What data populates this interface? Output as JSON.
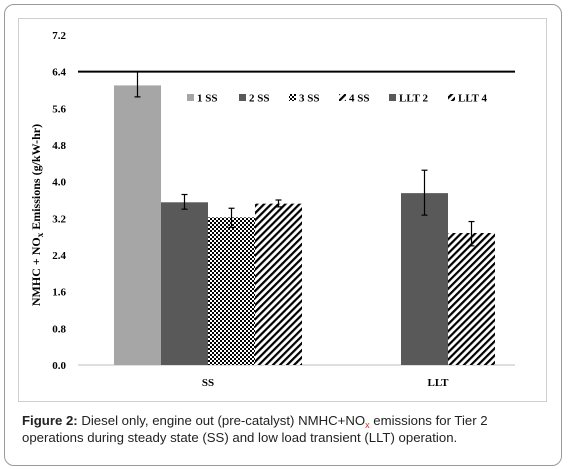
{
  "chart_data": {
    "type": "bar",
    "title": "",
    "xlabel": "",
    "ylabel": "NMHC + NO",
    "ylabel_sub": "x",
    "ylabel_rest": " Emissions (g/kW-hr)",
    "ylim": [
      0,
      7.2
    ],
    "yticks": [
      "0.0",
      "0.8",
      "1.6",
      "2.4",
      "3.2",
      "4.0",
      "4.8",
      "5.6",
      "6.4",
      "7.2"
    ],
    "categories": [
      "SS",
      "LLT"
    ],
    "reference_line": 6.4,
    "grid": false,
    "legend_position": "top-right",
    "series": [
      {
        "name": "1 SS",
        "group": "SS",
        "value": 6.1,
        "err_low": 5.85,
        "err_high": 6.4,
        "color": "#a6a6a6",
        "pattern": "solid"
      },
      {
        "name": "2 SS",
        "group": "SS",
        "value": 3.55,
        "err_low": 3.4,
        "err_high": 3.72,
        "color": "#595959",
        "pattern": "solid"
      },
      {
        "name": "3 SS",
        "group": "SS",
        "value": 3.22,
        "err_low": 3.0,
        "err_high": 3.42,
        "color": "#000000",
        "pattern": "checker"
      },
      {
        "name": "4 SS",
        "group": "SS",
        "value": 3.52,
        "err_low": 3.45,
        "err_high": 3.6,
        "color": "#000000",
        "pattern": "diagonal"
      },
      {
        "name": "LLT 2",
        "group": "LLT",
        "value": 3.75,
        "err_low": 3.27,
        "err_high": 4.25,
        "color": "#595959",
        "pattern": "solid"
      },
      {
        "name": "LLT 4",
        "group": "LLT",
        "value": 2.88,
        "err_low": 2.6,
        "err_high": 3.13,
        "color": "#000000",
        "pattern": "diagonal"
      }
    ]
  },
  "caption": {
    "label": "Figure 2:",
    "text_part1": " Diesel only, engine out (pre-catalyst) NMHC+NO",
    "sub": "x",
    "text_part2": " emissions for Tier 2 operations during steady state (SS) and low load transient (LLT) operation."
  }
}
